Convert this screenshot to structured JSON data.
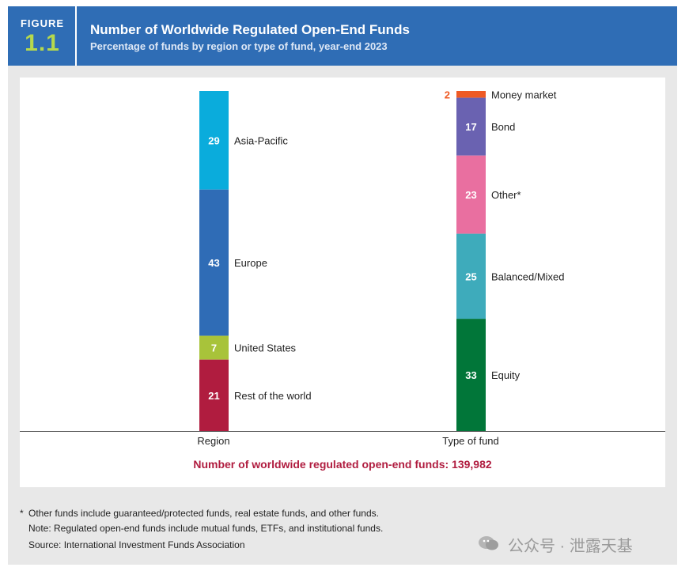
{
  "figure": {
    "label": "FIGURE",
    "number": "1.1"
  },
  "title": "Number of Worldwide Regulated Open-End Funds",
  "subtitle": "Percentage of funds by region or type of fund, year-end 2023",
  "chart_data": {
    "type": "bar",
    "subtype": "stacked-100",
    "categories": [
      "Region",
      "Type of fund"
    ],
    "stacks": [
      {
        "category": "Region",
        "segments": [
          {
            "name": "Asia-Pacific",
            "value": 29,
            "color": "#0aacdc"
          },
          {
            "name": "Europe",
            "value": 43,
            "color": "#2f6cb6"
          },
          {
            "name": "United States",
            "value": 7,
            "color": "#a8c33a"
          },
          {
            "name": "Rest of the world",
            "value": 21,
            "color": "#b01c3f"
          }
        ]
      },
      {
        "category": "Type of fund",
        "segments": [
          {
            "name": "Money market",
            "value": 2,
            "color": "#ef5a24"
          },
          {
            "name": "Bond",
            "value": 17,
            "color": "#6a62b1"
          },
          {
            "name": "Other*",
            "value": 23,
            "color": "#e96fa0"
          },
          {
            "name": "Balanced/Mixed",
            "value": 25,
            "color": "#3eabbb"
          },
          {
            "name": "Equity",
            "value": 33,
            "color": "#017639"
          }
        ]
      }
    ],
    "total_label": "Number of worldwide regulated open-end funds: 139,982",
    "ylim": [
      0,
      100
    ],
    "colors": {
      "small_value": "#ef5a24",
      "total": "#b01c3f",
      "axis": "#555555"
    }
  },
  "notes": {
    "asterisk": "*",
    "other_funds": "Other funds include guaranteed/protected funds, real estate funds, and other funds.",
    "note": "Note: Regulated open-end funds include mutual funds, ETFs, and institutional funds.",
    "source": "Source: International Investment Funds Association"
  },
  "watermark": "公众号 · 泄露天基"
}
